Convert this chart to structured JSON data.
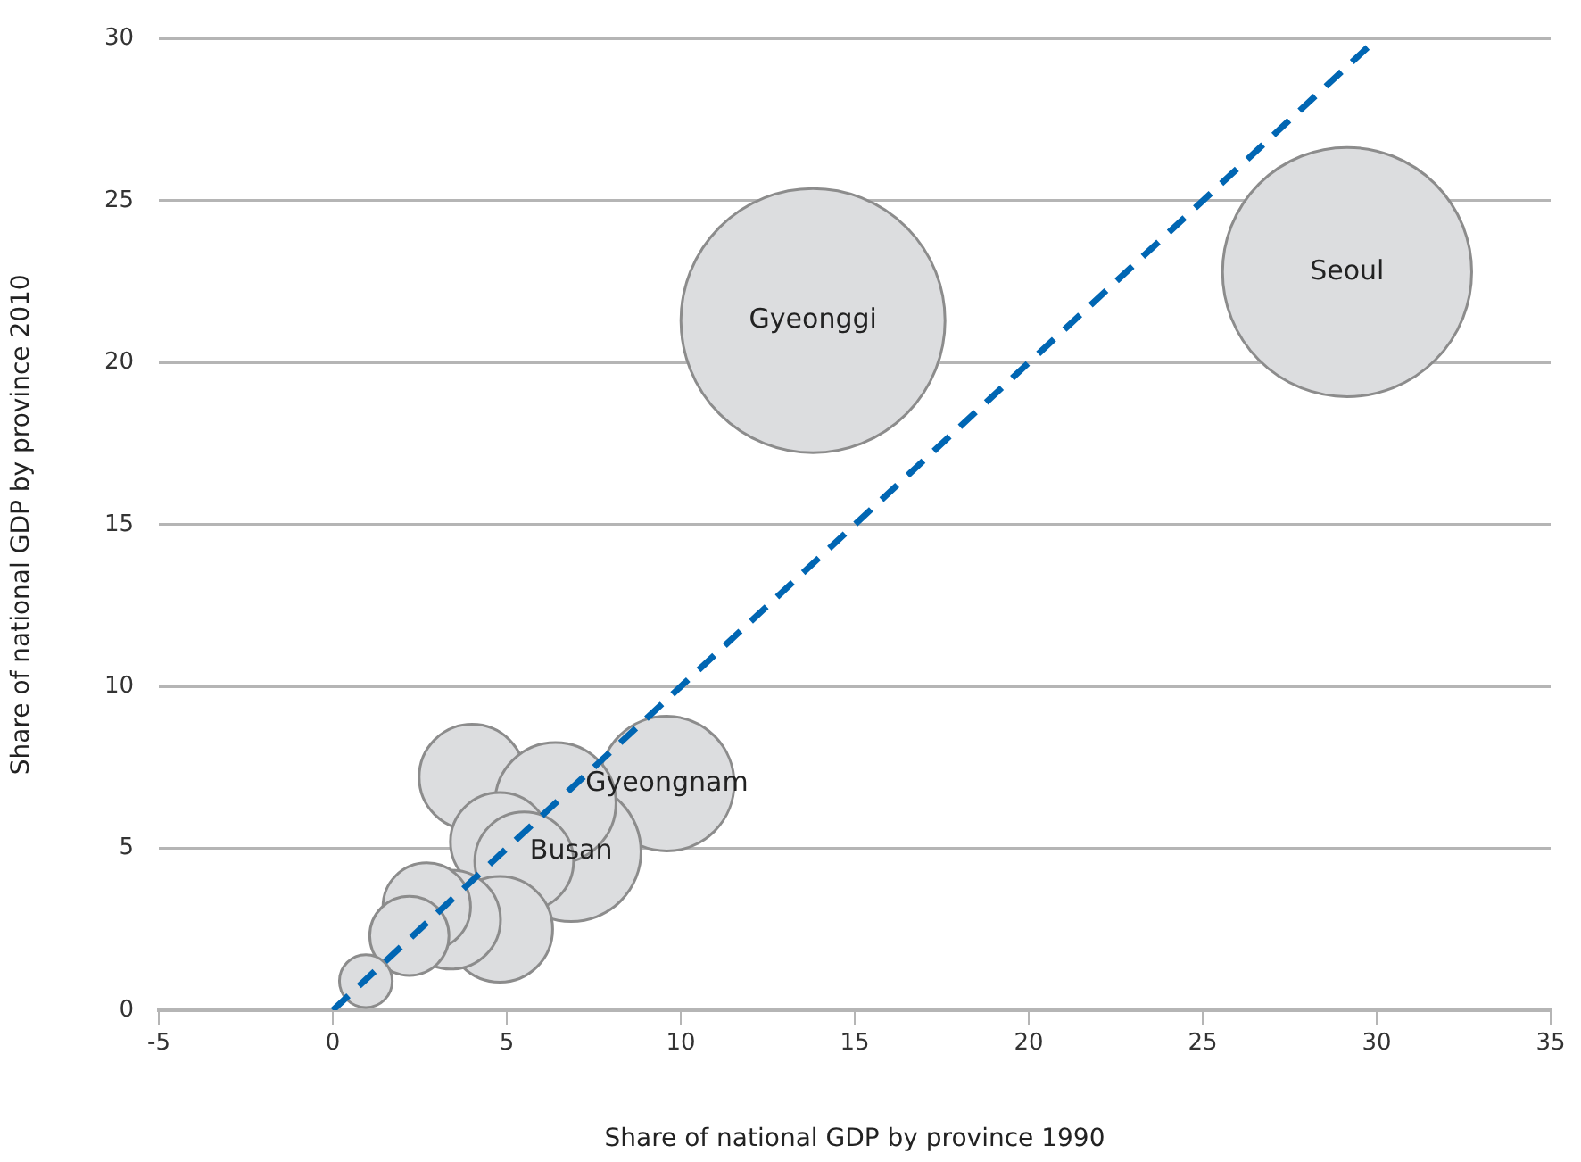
{
  "chart_data": {
    "type": "bubble",
    "xlabel": "Share of national GDP by province 1990",
    "ylabel": "Share of national GDP by province 2010",
    "xlim": [
      -5,
      35
    ],
    "xticks": [
      -5,
      0,
      5,
      10,
      15,
      20,
      25,
      30,
      35
    ],
    "ylim": [
      0,
      30
    ],
    "yticks": [
      0,
      5,
      10,
      15,
      20,
      25,
      30
    ],
    "grid": "y",
    "legend": false,
    "series": [
      {
        "color": "#dcdddf",
        "x": [
          29.15,
          13.8,
          9.6,
          6.85,
          4.0,
          6.4,
          4.8,
          5.5,
          4.8,
          3.4,
          2.7,
          2.2,
          0.95
        ],
        "values": [
          22.8,
          21.3,
          7.0,
          4.9,
          7.2,
          6.4,
          5.2,
          4.6,
          2.5,
          2.8,
          3.2,
          2.3,
          0.9
        ],
        "sizes": [
          0.89,
          1,
          0.26,
          0.28,
          0.16,
          0.21,
          0.14,
          0.14,
          0.16,
          0.14,
          0.11,
          0.09,
          0.04
        ],
        "value_labels": [
          "Seoul",
          "Gyeonggi",
          "Gyeongnam",
          "Busan",
          null,
          null,
          null,
          null,
          null,
          null,
          null,
          null,
          null
        ]
      },
      {
        "type": "line",
        "color": "#0066b3",
        "line_style": "dashed",
        "marker": "none",
        "x": [
          0,
          30
        ],
        "values": [
          0,
          30
        ]
      }
    ]
  }
}
